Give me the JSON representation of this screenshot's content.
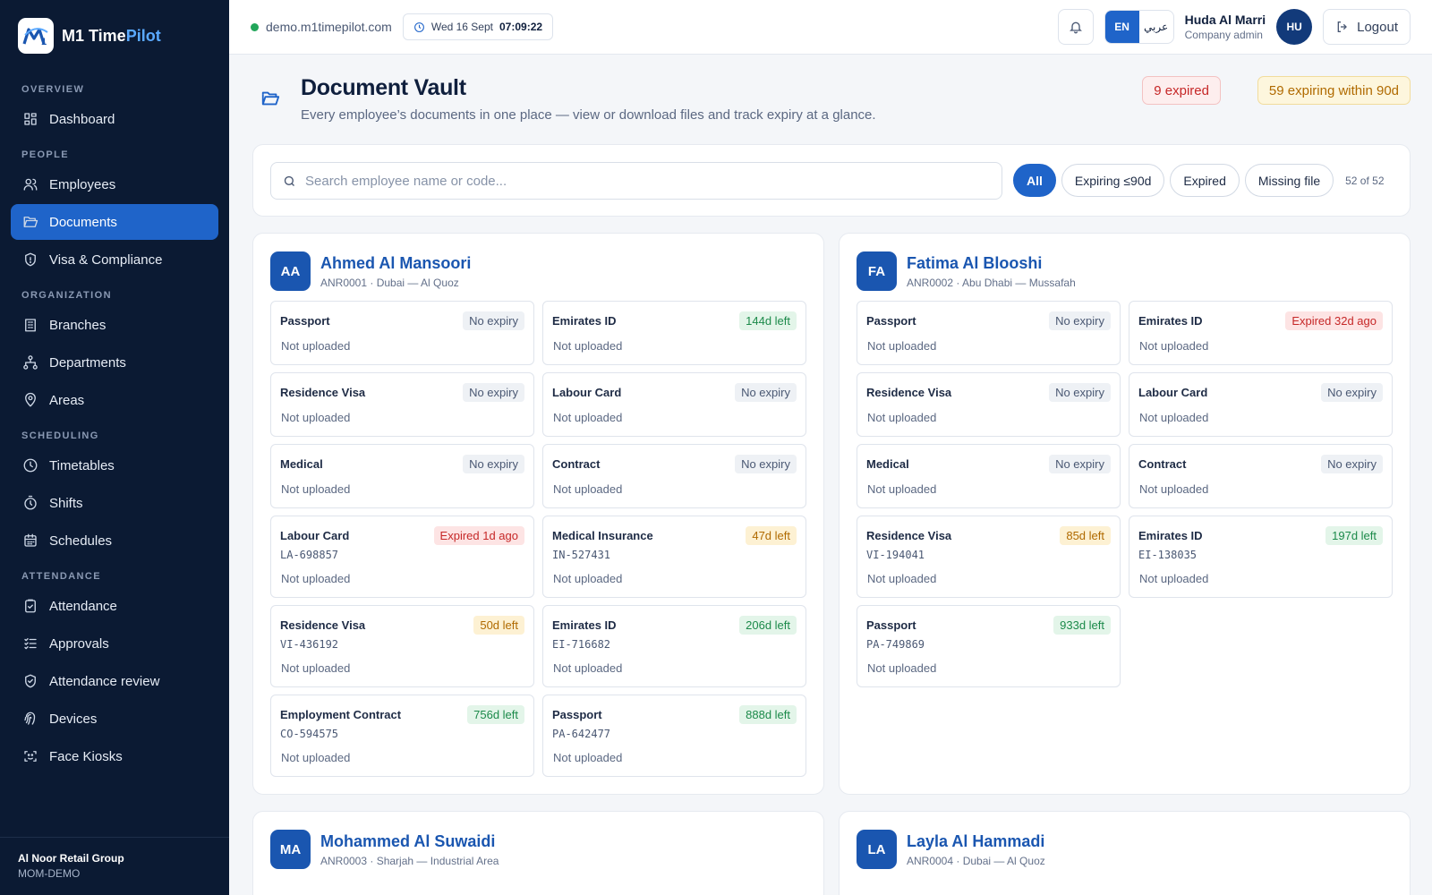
{
  "app": {
    "name_main": "M1 Time",
    "name_accent": "Pilot"
  },
  "sidebar": {
    "sections": [
      {
        "title": "OVERVIEW",
        "items": [
          {
            "label": "Dashboard",
            "icon": "dashboard-icon"
          }
        ]
      },
      {
        "title": "PEOPLE",
        "items": [
          {
            "label": "Employees",
            "icon": "users-icon"
          },
          {
            "label": "Documents",
            "icon": "folder-icon",
            "active": true
          },
          {
            "label": "Visa & Compliance",
            "icon": "shield-icon"
          }
        ]
      },
      {
        "title": "ORGANIZATION",
        "items": [
          {
            "label": "Branches",
            "icon": "building-icon"
          },
          {
            "label": "Departments",
            "icon": "org-chart-icon"
          },
          {
            "label": "Areas",
            "icon": "map-pin-icon"
          }
        ]
      },
      {
        "title": "SCHEDULING",
        "items": [
          {
            "label": "Timetables",
            "icon": "clock-icon"
          },
          {
            "label": "Shifts",
            "icon": "timer-icon"
          },
          {
            "label": "Schedules",
            "icon": "calendar-icon"
          }
        ]
      },
      {
        "title": "ATTENDANCE",
        "items": [
          {
            "label": "Attendance",
            "icon": "clipboard-check-icon"
          },
          {
            "label": "Approvals",
            "icon": "list-check-icon"
          },
          {
            "label": "Attendance review",
            "icon": "shield-check-icon"
          },
          {
            "label": "Devices",
            "icon": "fingerprint-icon"
          },
          {
            "label": "Face Kiosks",
            "icon": "face-scan-icon"
          }
        ]
      }
    ],
    "footer": {
      "org": "Al Noor Retail Group",
      "code": "MOM-DEMO"
    }
  },
  "topbar": {
    "domain": "demo.m1timepilot.com",
    "date": "Wed 16 Sept",
    "time": "07:09:22",
    "lang_en": "EN",
    "lang_ar": "عربي",
    "user_name": "Huda Al Marri",
    "user_role": "Company admin",
    "avatar_initials": "HU",
    "logout": "Logout"
  },
  "page": {
    "title": "Document Vault",
    "subtitle": "Every employee’s documents in one place — view or download files and track expiry at a glance.",
    "expired_badge": "9 expired",
    "expiring_badge": "59 expiring within 90d"
  },
  "filters": {
    "search_placeholder": "Search employee name or code...",
    "chips": [
      {
        "label": "All",
        "active": true
      },
      {
        "label": "Expiring ≤90d"
      },
      {
        "label": "Expired"
      },
      {
        "label": "Missing file"
      }
    ],
    "count": "52 of 52"
  },
  "employees": [
    {
      "initials": "AA",
      "name": "Ahmed Al Mansoori",
      "meta": "ANR0001 · Dubai — Al Quoz",
      "docs": [
        {
          "type": "Passport",
          "pill": "No expiry",
          "state": "none",
          "status": "Not uploaded"
        },
        {
          "type": "Emirates ID",
          "pill": "144d left",
          "state": "good",
          "status": "Not uploaded"
        },
        {
          "type": "Residence Visa",
          "pill": "No expiry",
          "state": "none",
          "status": "Not uploaded"
        },
        {
          "type": "Labour Card",
          "pill": "No expiry",
          "state": "none",
          "status": "Not uploaded"
        },
        {
          "type": "Medical",
          "pill": "No expiry",
          "state": "none",
          "status": "Not uploaded"
        },
        {
          "type": "Contract",
          "pill": "No expiry",
          "state": "none",
          "status": "Not uploaded"
        },
        {
          "type": "Labour Card",
          "number": "LA-698857",
          "pill": "Expired 1d ago",
          "state": "bad",
          "status": "Not uploaded"
        },
        {
          "type": "Medical Insurance",
          "number": "IN-527431",
          "pill": "47d left",
          "state": "warn",
          "status": "Not uploaded"
        },
        {
          "type": "Residence Visa",
          "number": "VI-436192",
          "pill": "50d left",
          "state": "warn",
          "status": "Not uploaded"
        },
        {
          "type": "Emirates ID",
          "number": "EI-716682",
          "pill": "206d left",
          "state": "good",
          "status": "Not uploaded"
        },
        {
          "type": "Employment Contract",
          "number": "CO-594575",
          "pill": "756d left",
          "state": "good",
          "status": "Not uploaded"
        },
        {
          "type": "Passport",
          "number": "PA-642477",
          "pill": "888d left",
          "state": "good",
          "status": "Not uploaded"
        }
      ]
    },
    {
      "initials": "FA",
      "name": "Fatima Al Blooshi",
      "meta": "ANR0002 · Abu Dhabi — Mussafah",
      "docs": [
        {
          "type": "Passport",
          "pill": "No expiry",
          "state": "none",
          "status": "Not uploaded"
        },
        {
          "type": "Emirates ID",
          "pill": "Expired 32d ago",
          "state": "bad",
          "status": "Not uploaded"
        },
        {
          "type": "Residence Visa",
          "pill": "No expiry",
          "state": "none",
          "status": "Not uploaded"
        },
        {
          "type": "Labour Card",
          "pill": "No expiry",
          "state": "none",
          "status": "Not uploaded"
        },
        {
          "type": "Medical",
          "pill": "No expiry",
          "state": "none",
          "status": "Not uploaded"
        },
        {
          "type": "Contract",
          "pill": "No expiry",
          "state": "none",
          "status": "Not uploaded"
        },
        {
          "type": "Residence Visa",
          "number": "VI-194041",
          "pill": "85d left",
          "state": "warn",
          "status": "Not uploaded"
        },
        {
          "type": "Emirates ID",
          "number": "EI-138035",
          "pill": "197d left",
          "state": "good",
          "status": "Not uploaded"
        },
        {
          "type": "Passport",
          "number": "PA-749869",
          "pill": "933d left",
          "state": "good",
          "status": "Not uploaded"
        }
      ]
    },
    {
      "initials": "MA",
      "name": "Mohammed Al Suwaidi",
      "meta": "ANR0003 · Sharjah — Industrial Area",
      "docs": []
    },
    {
      "initials": "LA",
      "name": "Layla Al Hammadi",
      "meta": "ANR0004 · Dubai — Al Quoz",
      "docs": []
    }
  ]
}
